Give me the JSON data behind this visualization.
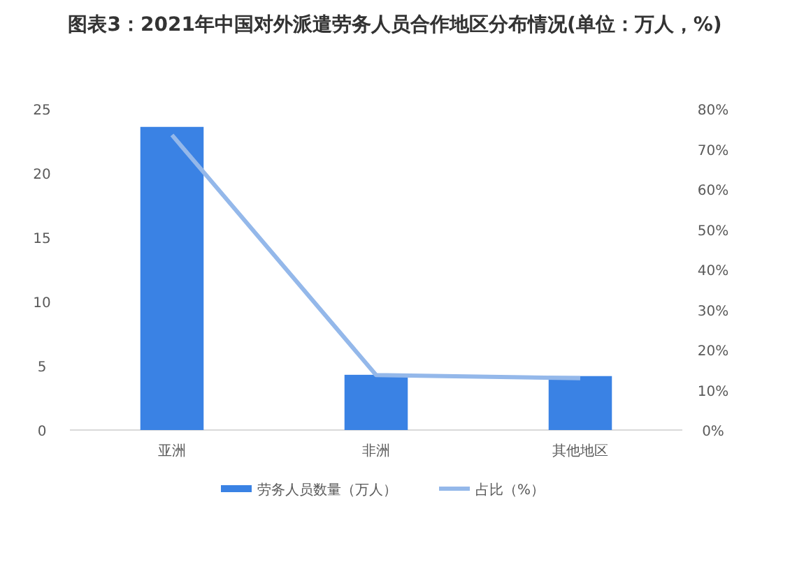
{
  "chart_data": {
    "type": "bar",
    "title": "图表3：2021年中国对外派遣劳务人员合作地区分布情况(单位：万人，%)",
    "categories": [
      "亚洲",
      "非洲",
      "其他地区"
    ],
    "series": [
      {
        "name": "劳务人员数量（万人）",
        "color": "#3a82e4",
        "values": [
          23.6,
          4.3,
          4.2
        ]
      },
      {
        "name": "占比（%）",
        "type": "line",
        "axis": "y2",
        "color": "#94b8ea",
        "values": [
          73.5,
          13.7,
          12.9
        ]
      }
    ],
    "ylim": [
      0,
      25
    ],
    "yticks": [
      0,
      5,
      10,
      15,
      20,
      25
    ],
    "y2lim": [
      0,
      80
    ],
    "y2ticks": [
      {
        "value": 0,
        "label": "0%"
      },
      {
        "value": 10,
        "label": "10%"
      },
      {
        "value": 20,
        "label": "20%"
      },
      {
        "value": 30,
        "label": "30%"
      },
      {
        "value": 40,
        "label": "40%"
      },
      {
        "value": 50,
        "label": "50%"
      },
      {
        "value": 60,
        "label": "60%"
      },
      {
        "value": 70,
        "label": "70%"
      },
      {
        "value": 80,
        "label": "80%"
      }
    ],
    "legend": "bottom"
  }
}
